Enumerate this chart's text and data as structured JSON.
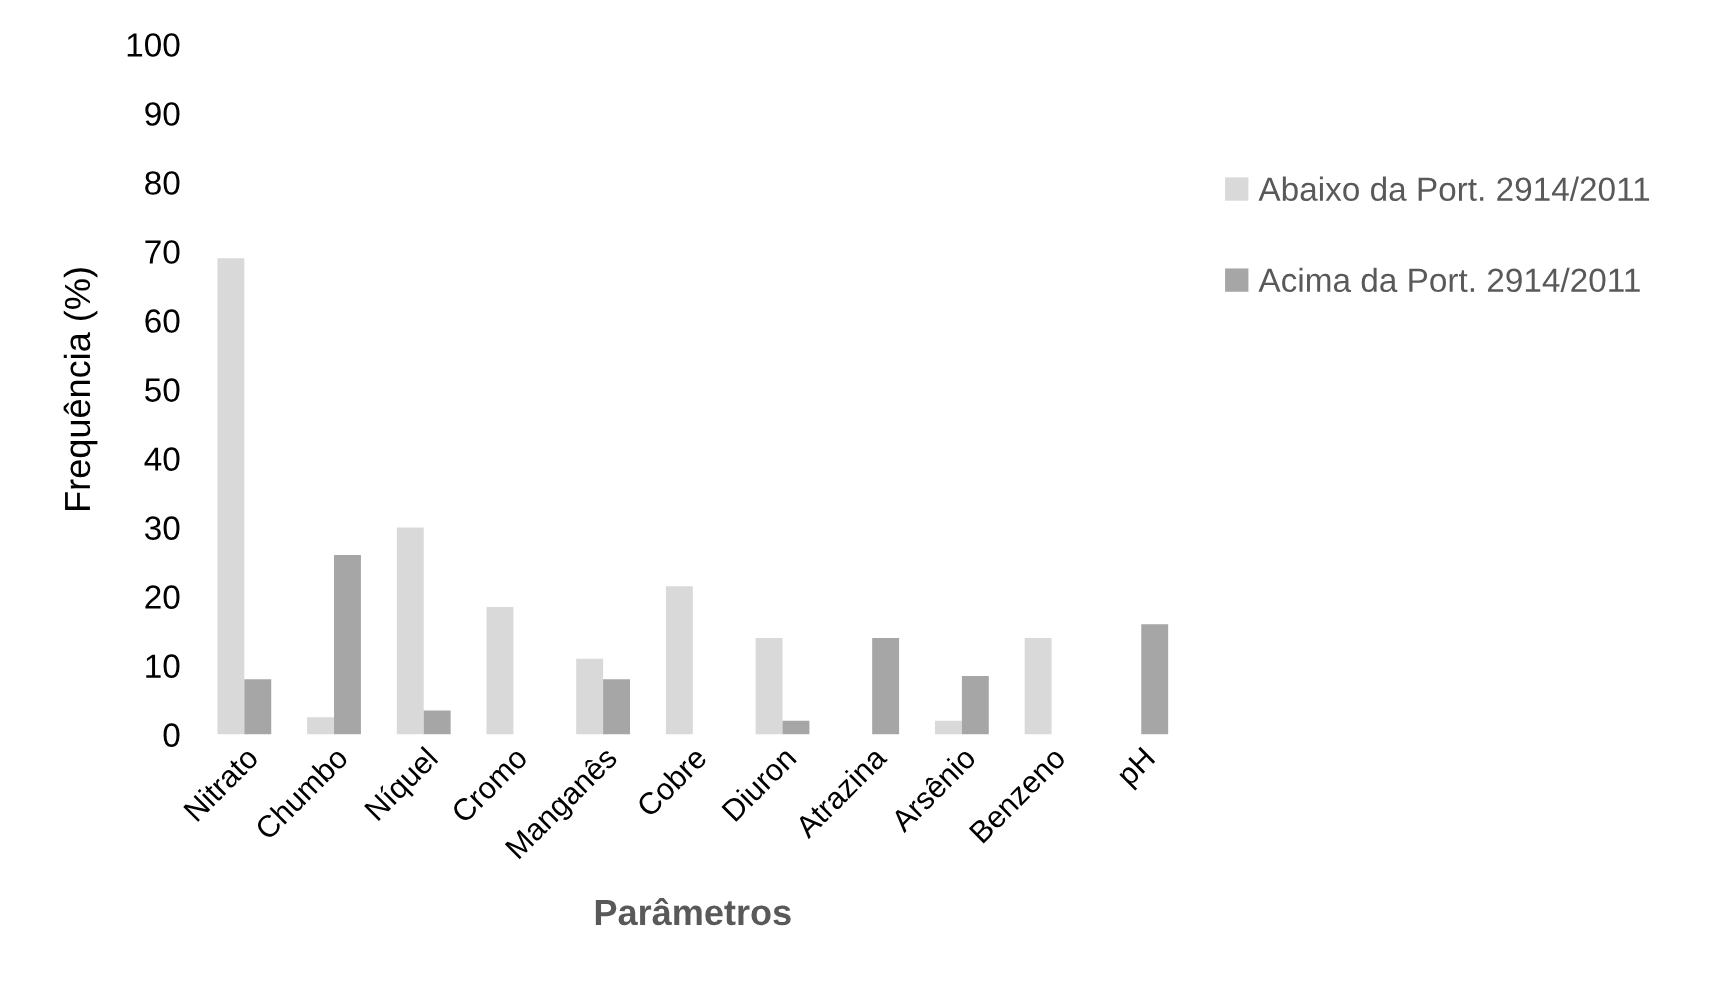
{
  "chart_data": {
    "type": "bar",
    "xlabel": "Parâmetros",
    "ylabel": "Frequência (%)",
    "categories": [
      "Nitrato",
      "Chumbo",
      "Níquel",
      "Cromo",
      "Manganês",
      "Cobre",
      "Diuron",
      "Atrazina",
      "Arsênio",
      "Benzeno",
      "pH"
    ],
    "series": [
      {
        "name": "Abaixo da Port. 2914/2011",
        "color": "#d9d9d9",
        "values": [
          69,
          2.5,
          30,
          18.5,
          11,
          21.5,
          14,
          0,
          2,
          14,
          0
        ]
      },
      {
        "name": "Acima da Port. 2914/2011",
        "color": "#a6a6a6",
        "values": [
          8,
          26,
          3.5,
          0,
          8,
          0,
          2,
          14,
          8.5,
          0,
          16
        ]
      }
    ],
    "ylim": [
      0,
      100
    ],
    "yticks": [
      0,
      10,
      20,
      30,
      40,
      50,
      60,
      70,
      80,
      90,
      100
    ],
    "grid": false,
    "legend": "right"
  }
}
